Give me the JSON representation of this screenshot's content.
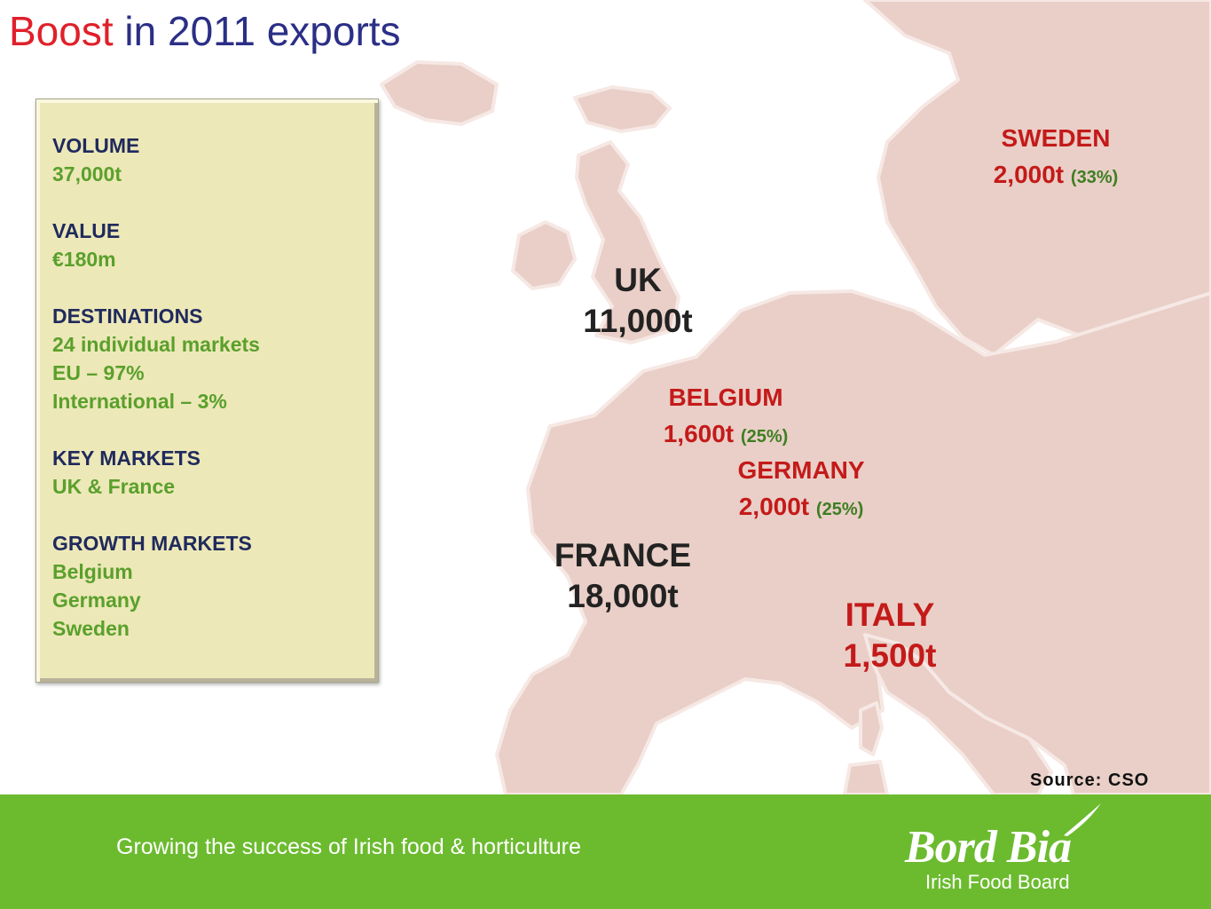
{
  "title": {
    "accent": "Boost",
    "rest": " in 2011 exports"
  },
  "colors": {
    "title_blue": "#2b2f86",
    "title_red": "#e0202a",
    "box_bg": "#ede8b8",
    "map_land": "#e9cfc7",
    "footer_green": "#6cbb2f",
    "label_red": "#c41a1a",
    "value_green": "#5aa02c"
  },
  "summary": {
    "volume_label": "VOLUME",
    "volume": "37,000t",
    "value_label": "VALUE",
    "value": "€180m",
    "destinations_label": "DESTINATIONS",
    "destinations": [
      "24 individual markets",
      "EU – 97%",
      "International – 3%"
    ],
    "key_markets_label": "KEY MARKETS",
    "key_markets": "UK & France",
    "growth_markets_label": "GROWTH MARKETS",
    "growth_markets": [
      "Belgium",
      "Germany",
      "Sweden"
    ]
  },
  "markets": {
    "uk": {
      "name": "UK",
      "amount": "11,000t"
    },
    "france": {
      "name": "FRANCE",
      "amount": "18,000t"
    },
    "belgium": {
      "name": "BELGIUM",
      "amount": "1,600t",
      "growth": "(25%)"
    },
    "germany": {
      "name": "GERMANY",
      "amount": "2,000t",
      "growth": "(25%)"
    },
    "sweden": {
      "name": "SWEDEN",
      "amount": "2,000t",
      "growth": "(33%)"
    },
    "italy": {
      "name": "ITALY",
      "amount": "1,500t"
    }
  },
  "source": "Source: CSO",
  "footer": {
    "tagline": "Growing the success of Irish food & horticulture",
    "logo_main": "Bord Bia",
    "logo_sub": "Irish Food Board"
  },
  "icons": {
    "map": "europe-map-icon",
    "logo_swoosh": "swoosh-icon"
  }
}
